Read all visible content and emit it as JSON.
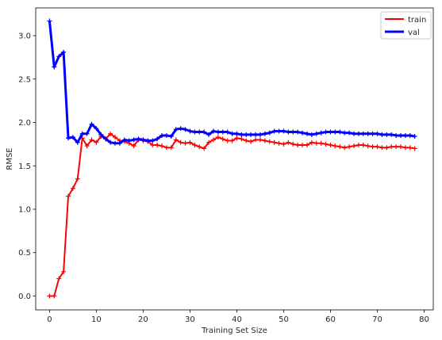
{
  "chart_data": {
    "type": "line",
    "xlabel": "Training Set Size",
    "ylabel": "RMSE",
    "xlim": [
      -2.95,
      81.95
    ],
    "ylim": [
      -0.16,
      3.32
    ],
    "xticks": [
      0,
      10,
      20,
      30,
      40,
      50,
      60,
      70,
      80
    ],
    "yticks": [
      0.0,
      0.5,
      1.0,
      1.5,
      2.0,
      2.5,
      3.0
    ],
    "xtick_labels": [
      "0",
      "10",
      "20",
      "30",
      "40",
      "50",
      "60",
      "70",
      "80"
    ],
    "ytick_labels": [
      "0.0",
      "0.5",
      "1.0",
      "1.5",
      "2.0",
      "2.5",
      "3.0"
    ],
    "grid": false,
    "legend_position": "top-right",
    "series": [
      {
        "name": "train",
        "color": "#ff0000",
        "marker": "plus",
        "x": [
          0,
          1,
          2,
          3,
          4,
          5,
          6,
          7,
          8,
          9,
          10,
          11,
          12,
          13,
          14,
          15,
          16,
          17,
          18,
          19,
          20,
          21,
          22,
          23,
          24,
          25,
          26,
          27,
          28,
          29,
          30,
          31,
          32,
          33,
          34,
          35,
          36,
          37,
          38,
          39,
          40,
          41,
          42,
          43,
          44,
          45,
          46,
          47,
          48,
          49,
          50,
          51,
          52,
          53,
          54,
          55,
          56,
          57,
          58,
          59,
          60,
          61,
          62,
          63,
          64,
          65,
          66,
          67,
          68,
          69,
          70,
          71,
          72,
          73,
          74,
          75,
          76,
          77,
          78
        ],
        "values": [
          0.0,
          0.0,
          0.2,
          0.28,
          1.15,
          1.24,
          1.35,
          1.82,
          1.73,
          1.8,
          1.77,
          1.84,
          1.81,
          1.87,
          1.83,
          1.79,
          1.78,
          1.76,
          1.73,
          1.8,
          1.79,
          1.78,
          1.74,
          1.74,
          1.73,
          1.71,
          1.71,
          1.8,
          1.77,
          1.76,
          1.77,
          1.74,
          1.72,
          1.7,
          1.77,
          1.8,
          1.83,
          1.81,
          1.79,
          1.79,
          1.82,
          1.81,
          1.79,
          1.78,
          1.8,
          1.8,
          1.79,
          1.78,
          1.77,
          1.76,
          1.75,
          1.77,
          1.75,
          1.74,
          1.74,
          1.74,
          1.77,
          1.76,
          1.76,
          1.75,
          1.74,
          1.73,
          1.72,
          1.71,
          1.72,
          1.73,
          1.74,
          1.74,
          1.73,
          1.72,
          1.72,
          1.71,
          1.71,
          1.72,
          1.72,
          1.72,
          1.71,
          1.71,
          1.7
        ]
      },
      {
        "name": "val",
        "color": "#0000ff",
        "marker": "plus",
        "x": [
          0,
          1,
          2,
          3,
          4,
          5,
          6,
          7,
          8,
          9,
          10,
          11,
          12,
          13,
          14,
          15,
          16,
          17,
          18,
          19,
          20,
          21,
          22,
          23,
          24,
          25,
          26,
          27,
          28,
          29,
          30,
          31,
          32,
          33,
          34,
          35,
          36,
          37,
          38,
          39,
          40,
          41,
          42,
          43,
          44,
          45,
          46,
          47,
          48,
          49,
          50,
          51,
          52,
          53,
          54,
          55,
          56,
          57,
          58,
          59,
          60,
          61,
          62,
          63,
          64,
          65,
          66,
          67,
          68,
          69,
          70,
          71,
          72,
          73,
          74,
          75,
          76,
          77,
          78
        ],
        "values": [
          3.17,
          2.64,
          2.76,
          2.81,
          1.82,
          1.83,
          1.77,
          1.87,
          1.87,
          1.98,
          1.93,
          1.86,
          1.81,
          1.77,
          1.76,
          1.76,
          1.8,
          1.79,
          1.8,
          1.81,
          1.8,
          1.79,
          1.79,
          1.81,
          1.85,
          1.85,
          1.84,
          1.92,
          1.93,
          1.92,
          1.9,
          1.89,
          1.89,
          1.89,
          1.86,
          1.9,
          1.89,
          1.89,
          1.89,
          1.87,
          1.87,
          1.86,
          1.86,
          1.86,
          1.86,
          1.86,
          1.87,
          1.88,
          1.9,
          1.9,
          1.9,
          1.89,
          1.89,
          1.89,
          1.88,
          1.87,
          1.86,
          1.87,
          1.88,
          1.89,
          1.89,
          1.89,
          1.89,
          1.88,
          1.88,
          1.87,
          1.87,
          1.87,
          1.87,
          1.87,
          1.87,
          1.86,
          1.86,
          1.86,
          1.85,
          1.85,
          1.85,
          1.85,
          1.84
        ]
      }
    ]
  }
}
